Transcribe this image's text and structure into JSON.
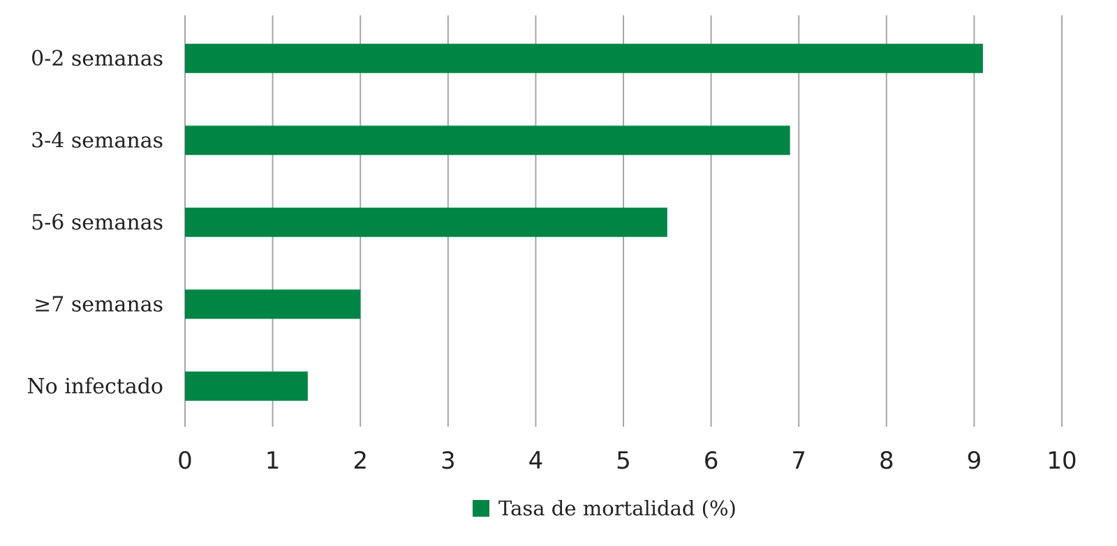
{
  "chart_data": {
    "type": "bar",
    "orientation": "horizontal",
    "categories": [
      "0-2 semanas",
      "3-4 semanas",
      "5-6 semanas",
      "≥7 semanas",
      "No infectado"
    ],
    "series": [
      {
        "name": "Tasa de mortalidad (%)",
        "values": [
          9.1,
          6.9,
          5.5,
          2.0,
          1.4
        ],
        "color": "#008545"
      }
    ],
    "xlim": [
      0,
      10
    ],
    "x_ticks": [
      0,
      1,
      2,
      3,
      4,
      5,
      6,
      7,
      8,
      9,
      10
    ],
    "grid": "vertical",
    "legend_position": "bottom",
    "title": "",
    "xlabel": "",
    "ylabel": ""
  },
  "colors": {
    "bar": "#008545",
    "grid": "#a6a6a6",
    "text": "#222222"
  }
}
